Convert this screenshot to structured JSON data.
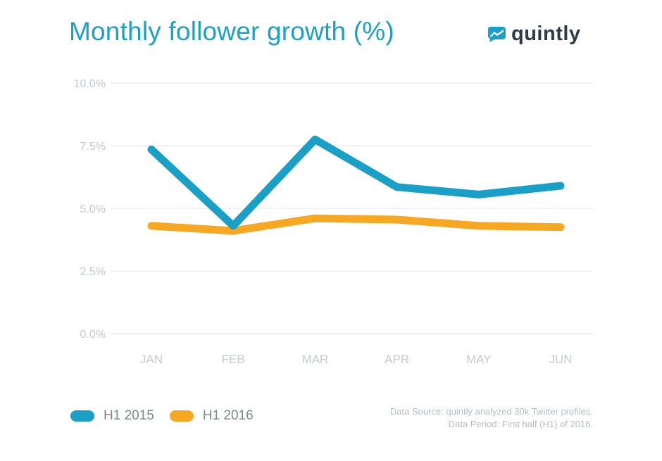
{
  "header": {
    "title": "Monthly follower growth (%)",
    "brand": "quintly"
  },
  "colors": {
    "title": "#1ba1c8",
    "series_2015": "#1a9fc6",
    "series_2016": "#f7a823",
    "grid": "#e4e4e4",
    "tick": "#c4cace",
    "brand_text": "#2d3b48",
    "brand_icon": "#1ba1c8"
  },
  "chart_data": {
    "type": "line",
    "title": "Monthly follower growth (%)",
    "xlabel": "",
    "ylabel": "",
    "categories": [
      "JAN",
      "FEB",
      "MAR",
      "APR",
      "MAY",
      "JUN"
    ],
    "y_ticks": [
      "0.0%",
      "2.5%",
      "5.0%",
      "7.5%",
      "10.0%"
    ],
    "ylim": [
      0,
      10
    ],
    "grid": true,
    "series": [
      {
        "name": "H1 2015",
        "values": [
          7.35,
          4.3,
          7.75,
          5.85,
          5.55,
          5.9
        ]
      },
      {
        "name": "H1 2016",
        "values": [
          4.3,
          4.1,
          4.6,
          4.55,
          4.3,
          4.25
        ]
      }
    ]
  },
  "legend": {
    "items": [
      {
        "label": "H1 2015"
      },
      {
        "label": "H1 2016"
      }
    ]
  },
  "footer": {
    "source_line": "Data Source: quintly analyzed 30k Twitter profiles.",
    "period_line": "Data Period: First half (H1) of 2016."
  }
}
